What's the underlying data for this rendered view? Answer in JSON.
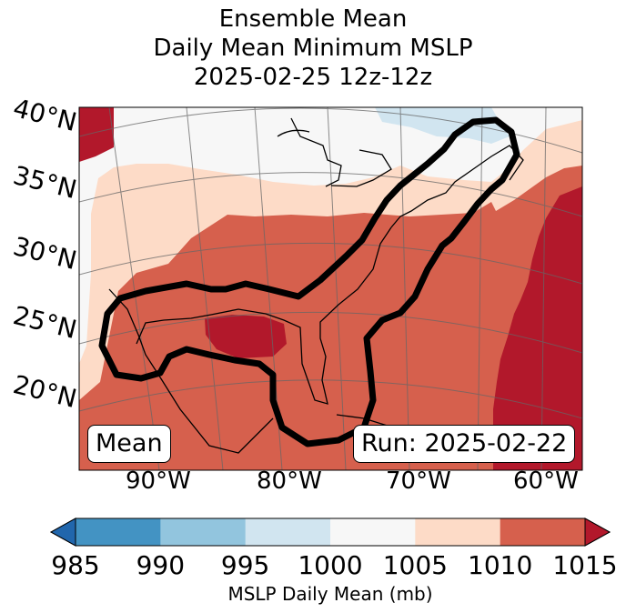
{
  "title": {
    "line1": "Ensemble Mean",
    "line2": "Daily Mean Minimum MSLP",
    "line3": "2025-02-25 12z-12z"
  },
  "map": {
    "lat_labels": [
      "40°N",
      "35°N",
      "30°N",
      "25°N",
      "20°N"
    ],
    "lon_labels": [
      "90°W",
      "80°W",
      "70°W",
      "60°W"
    ],
    "mean_box": "Mean",
    "run_box": "Run: 2025-02-22",
    "colors": {
      "lt1000": "#d1e5f0",
      "r1000_1005": "#f7f7f7",
      "r1005_1010": "#fddbc7",
      "r1010_1015": "#d6604d",
      "gt1015": "#b2182b",
      "outline": "#000000"
    }
  },
  "colorbar": {
    "ticks": [
      "985",
      "990",
      "995",
      "1000",
      "1005",
      "1010",
      "1015"
    ],
    "label": "MSLP Daily Mean (mb)",
    "colors": [
      "#2166ac",
      "#4393c3",
      "#92c5de",
      "#d1e5f0",
      "#f7f7f7",
      "#fddbc7",
      "#d6604d",
      "#b2182b"
    ]
  }
}
